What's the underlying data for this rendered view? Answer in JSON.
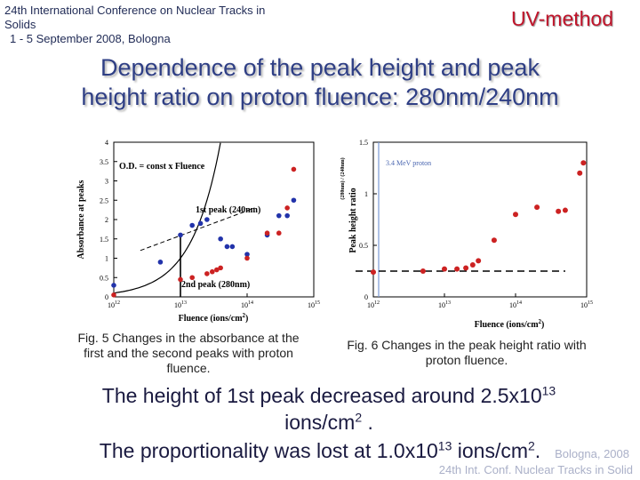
{
  "header": {
    "conference_line1": "24th International Conference on Nuclear Tracks in",
    "conference_line2": "Solids",
    "conference_line3": "1 - 5 September 2008, Bologna",
    "method": "UV-method"
  },
  "slide": {
    "title_line1": "Dependence of the peak height and peak",
    "title_line2": "height ratio on proton fluence: 280nm/240nm"
  },
  "captions": {
    "fig5": "Fig. 5 Changes in the absorbance at the first and the second peaks with proton fluence.",
    "fig6": "Fig. 6 Changes in the peak height ratio with proton fluence."
  },
  "conclusion": {
    "line1_a": "The height of 1st peak decreased around 2.5x10",
    "line1_exp": "13",
    "line2_a": "ions/cm",
    "line2_exp": "2",
    "line2_b": " .",
    "line3_a": "The proportionality was lost at 1.0x10",
    "line3_exp": "13",
    "line3_b": " ions/cm",
    "line3_exp2": "2",
    "line3_c": "."
  },
  "footer": {
    "line1": "Bologna,  2008",
    "line2": "24th Int. Conf. Nuclear Tracks in Solid"
  },
  "chart_data": [
    {
      "type": "scatter",
      "xscale": "log",
      "xlim": [
        1000000000000.0,
        1000000000000000.0
      ],
      "ylim": [
        0,
        4
      ],
      "xticks": [
        {
          "v": 1000000000000.0,
          "b": "10",
          "e": "12"
        },
        {
          "v": 10000000000000.0,
          "b": "10",
          "e": "13"
        },
        {
          "v": 100000000000000.0,
          "b": "10",
          "e": "14"
        },
        {
          "v": 1000000000000000.0,
          "b": "10",
          "e": "15"
        }
      ],
      "yticks": [
        "0",
        "0.5",
        "1",
        "1.5",
        "2",
        "2.5",
        "3",
        "3.5",
        "4"
      ],
      "xlabel": "Fluence (ions/cm",
      "xlabel_sup": "2",
      "xlabel_end": ")",
      "ylabel": "Absorbance at peaks",
      "annotations": {
        "od": "O.D. = const x Fluence",
        "first": "1st peak (240nm)",
        "second": "2nd peak (280nm)"
      },
      "series": [
        {
          "name": "1st peak (240nm)",
          "color": "#2233aa",
          "x": [
            1000000000000.0,
            5000000000000.0,
            10000000000000.0,
            15000000000000.0,
            20000000000000.0,
            25000000000000.0,
            40000000000000.0,
            50000000000000.0,
            60000000000000.0,
            100000000000000.0,
            200000000000000.0,
            300000000000000.0,
            400000000000000.0,
            500000000000000.0
          ],
          "y": [
            0.3,
            0.9,
            1.6,
            1.85,
            1.9,
            2.0,
            1.5,
            1.3,
            1.3,
            1.1,
            1.6,
            2.1,
            2.1,
            2.5
          ]
        },
        {
          "name": "2nd peak (280nm)",
          "color": "#cc2222",
          "x": [
            1000000000000.0,
            10000000000000.0,
            15000000000000.0,
            25000000000000.0,
            30000000000000.0,
            35000000000000.0,
            40000000000000.0,
            100000000000000.0,
            200000000000000.0,
            300000000000000.0,
            400000000000000.0,
            500000000000000.0
          ],
          "y": [
            0.05,
            0.45,
            0.5,
            0.6,
            0.65,
            0.7,
            0.75,
            1.0,
            1.65,
            1.65,
            2.3,
            3.3
          ]
        }
      ]
    },
    {
      "type": "scatter",
      "xscale": "log",
      "xlim": [
        1000000000000.0,
        1000000000000000.0
      ],
      "ylim": [
        0,
        1.5
      ],
      "xticks": [
        {
          "v": 1000000000000.0,
          "b": "10",
          "e": "12"
        },
        {
          "v": 10000000000000.0,
          "b": "10",
          "e": "13"
        },
        {
          "v": 100000000000000.0,
          "b": "10",
          "e": "14"
        },
        {
          "v": 1000000000000000.0,
          "b": "10",
          "e": "15"
        }
      ],
      "yticks": [
        "0",
        "0.5",
        "1",
        "1.5"
      ],
      "xlabel": "Fluence (ions/cm",
      "xlabel_sup": "2",
      "xlabel_end": ")",
      "ylabel": "Peak height ratio",
      "ylabel_small": "(280nm) / (240nm)",
      "annotations": {
        "proton": "3.4 MeV proton"
      },
      "series": [
        {
          "name": "Peak height ratio",
          "color": "#cc2222",
          "x": [
            1000000000000.0,
            5000000000000.0,
            10000000000000.0,
            15000000000000.0,
            20000000000000.0,
            25000000000000.0,
            30000000000000.0,
            50000000000000.0,
            100000000000000.0,
            200000000000000.0,
            400000000000000.0,
            500000000000000.0,
            800000000000000.0,
            900000000000000.0
          ],
          "y": [
            0.24,
            0.25,
            0.27,
            0.27,
            0.28,
            0.31,
            0.35,
            0.55,
            0.8,
            0.87,
            0.83,
            0.84,
            1.2,
            1.3
          ]
        }
      ]
    }
  ]
}
